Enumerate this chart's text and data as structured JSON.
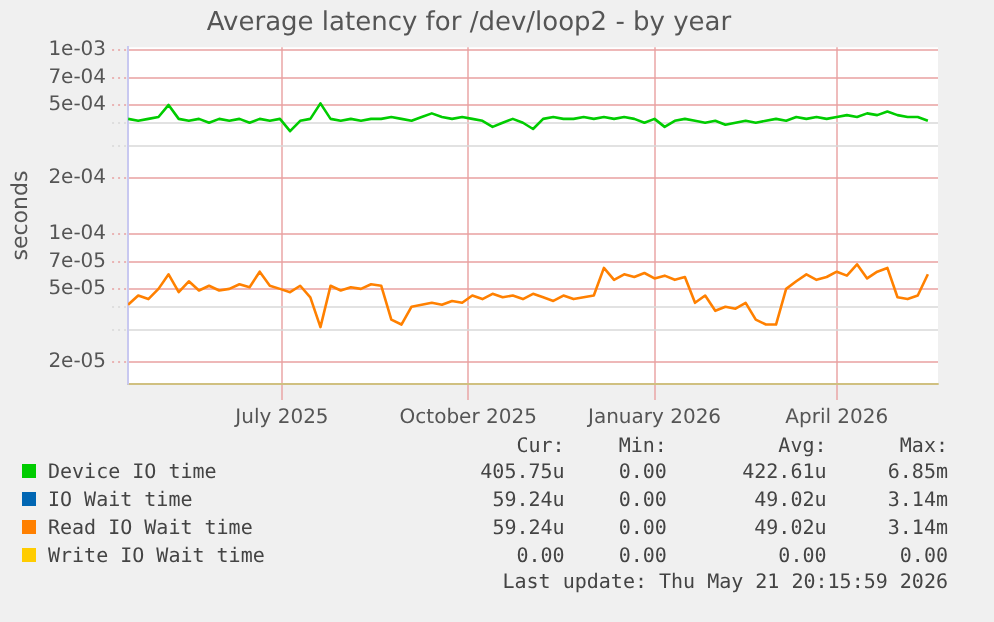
{
  "chart_data": {
    "type": "line",
    "title": "Average latency for /dev/loop2 - by year",
    "ylabel": "seconds",
    "log": "y",
    "grid": true,
    "legend": "bottom",
    "marker": "none",
    "line_style": "solid",
    "xlim": [
      "2025-04-16",
      "2026-05-21"
    ],
    "xticks": [
      {
        "value": "2025-07-01",
        "label": "July 2025"
      },
      {
        "value": "2025-10-01",
        "label": "October 2025"
      },
      {
        "value": "2026-01-01",
        "label": "January 2026"
      },
      {
        "value": "2026-04-01",
        "label": "April 2026"
      }
    ],
    "ylim": [
      1.52e-05,
      0.00103
    ],
    "yticks": [
      {
        "value": 2e-05,
        "label": "2e-05"
      },
      {
        "value": 3e-05,
        "label": null
      },
      {
        "value": 4e-05,
        "label": null
      },
      {
        "value": 5e-05,
        "label": "5e-05"
      },
      {
        "value": 7e-05,
        "label": "7e-05"
      },
      {
        "value": 0.0001,
        "label": "1e-04"
      },
      {
        "value": 0.0002,
        "label": "2e-04"
      },
      {
        "value": 0.0003,
        "label": null
      },
      {
        "value": 0.0004,
        "label": null
      },
      {
        "value": 0.0005,
        "label": "5e-04"
      },
      {
        "value": 0.0007,
        "label": "7e-04"
      },
      {
        "value": 0.001,
        "label": "1e-03"
      }
    ],
    "x": [
      "2025-04-16",
      "2025-04-21",
      "2025-04-26",
      "2025-05-01",
      "2025-05-06",
      "2025-05-11",
      "2025-05-16",
      "2025-05-21",
      "2025-05-26",
      "2025-05-31",
      "2025-06-05",
      "2025-06-10",
      "2025-06-15",
      "2025-06-20",
      "2025-06-25",
      "2025-06-30",
      "2025-07-05",
      "2025-07-10",
      "2025-07-15",
      "2025-07-20",
      "2025-07-25",
      "2025-07-30",
      "2025-08-04",
      "2025-08-09",
      "2025-08-14",
      "2025-08-19",
      "2025-08-24",
      "2025-08-29",
      "2025-09-03",
      "2025-09-08",
      "2025-09-13",
      "2025-09-18",
      "2025-09-23",
      "2025-09-28",
      "2025-10-03",
      "2025-10-08",
      "2025-10-13",
      "2025-10-18",
      "2025-10-23",
      "2025-10-28",
      "2025-11-02",
      "2025-11-07",
      "2025-11-12",
      "2025-11-17",
      "2025-11-22",
      "2025-11-27",
      "2025-12-02",
      "2025-12-07",
      "2025-12-12",
      "2025-12-17",
      "2025-12-22",
      "2025-12-27",
      "2026-01-01",
      "2026-01-06",
      "2026-01-11",
      "2026-01-16",
      "2026-01-21",
      "2026-01-26",
      "2026-01-31",
      "2026-02-05",
      "2026-02-10",
      "2026-02-15",
      "2026-02-20",
      "2026-02-25",
      "2026-03-02",
      "2026-03-07",
      "2026-03-12",
      "2026-03-17",
      "2026-03-22",
      "2026-03-27",
      "2026-04-01",
      "2026-04-06",
      "2026-04-11",
      "2026-04-16",
      "2026-04-21",
      "2026-04-26",
      "2026-05-01",
      "2026-05-06",
      "2026-05-11",
      "2026-05-16"
    ],
    "series": [
      {
        "name": "Device IO time",
        "color": "#00cc00",
        "values": [
          0.00042,
          0.00041,
          0.00042,
          0.00043,
          0.0005,
          0.00042,
          0.00041,
          0.00042,
          0.0004,
          0.00042,
          0.00041,
          0.00042,
          0.0004,
          0.00042,
          0.00041,
          0.00042,
          0.00036,
          0.00041,
          0.00042,
          0.00051,
          0.00042,
          0.00041,
          0.00042,
          0.00041,
          0.00042,
          0.00042,
          0.00043,
          0.00042,
          0.00041,
          0.00043,
          0.00045,
          0.00043,
          0.00042,
          0.00043,
          0.00042,
          0.00041,
          0.00038,
          0.0004,
          0.00042,
          0.0004,
          0.00037,
          0.00042,
          0.00043,
          0.00042,
          0.00042,
          0.00043,
          0.00042,
          0.00043,
          0.00042,
          0.00043,
          0.00042,
          0.0004,
          0.00042,
          0.00038,
          0.00041,
          0.00042,
          0.00041,
          0.0004,
          0.00041,
          0.00039,
          0.0004,
          0.00041,
          0.0004,
          0.00041,
          0.00042,
          0.00041,
          0.00043,
          0.00042,
          0.00043,
          0.00042,
          0.00043,
          0.00044,
          0.00043,
          0.00045,
          0.00044,
          0.00046,
          0.00044,
          0.00043,
          0.00043,
          0.00041
        ]
      },
      {
        "name": "IO Wait time",
        "color": "#0066b3",
        "values": [
          null,
          null,
          null,
          null,
          null,
          null,
          null,
          null,
          null,
          null,
          null,
          null,
          null,
          null,
          null,
          null,
          null,
          null,
          null,
          null,
          null,
          null,
          null,
          null,
          null,
          null,
          null,
          null,
          null,
          null,
          null,
          null,
          null,
          null,
          null,
          null,
          null,
          null,
          null,
          null,
          null,
          null,
          null,
          null,
          null,
          null,
          null,
          null,
          null,
          null,
          null,
          null,
          null,
          null,
          null,
          null,
          null,
          null,
          null,
          null,
          null,
          null,
          null,
          null,
          null,
          null,
          null,
          null,
          null,
          null,
          null,
          null,
          null,
          null,
          null,
          null,
          null,
          null,
          null,
          null
        ]
      },
      {
        "name": "Read IO Wait time",
        "color": "#ff8000",
        "values": [
          4.1e-05,
          4.6e-05,
          4.4e-05,
          5e-05,
          6e-05,
          4.8e-05,
          5.5e-05,
          4.9e-05,
          5.2e-05,
          4.9e-05,
          5e-05,
          5.3e-05,
          5.1e-05,
          6.2e-05,
          5.2e-05,
          5e-05,
          4.8e-05,
          5.2e-05,
          4.5e-05,
          3.1e-05,
          5.2e-05,
          4.9e-05,
          5.1e-05,
          5e-05,
          5.3e-05,
          5.2e-05,
          3.4e-05,
          3.2e-05,
          4e-05,
          4.1e-05,
          4.2e-05,
          4.1e-05,
          4.3e-05,
          4.2e-05,
          4.6e-05,
          4.4e-05,
          4.7e-05,
          4.5e-05,
          4.6e-05,
          4.4e-05,
          4.7e-05,
          4.5e-05,
          4.3e-05,
          4.6e-05,
          4.4e-05,
          4.5e-05,
          4.6e-05,
          6.5e-05,
          5.6e-05,
          6e-05,
          5.8e-05,
          6.1e-05,
          5.7e-05,
          5.9e-05,
          5.6e-05,
          5.8e-05,
          4.2e-05,
          4.6e-05,
          3.8e-05,
          4e-05,
          3.9e-05,
          4.2e-05,
          3.4e-05,
          3.2e-05,
          3.2e-05,
          5e-05,
          5.5e-05,
          6e-05,
          5.6e-05,
          5.8e-05,
          6.2e-05,
          5.9e-05,
          6.8e-05,
          5.7e-05,
          6.2e-05,
          6.5e-05,
          4.5e-05,
          4.4e-05,
          4.6e-05,
          6e-05
        ]
      },
      {
        "name": "Write IO Wait time",
        "color": "#ffcc00",
        "values": [
          null,
          null,
          null,
          null,
          null,
          null,
          null,
          null,
          null,
          null,
          null,
          null,
          null,
          null,
          null,
          null,
          null,
          null,
          null,
          null,
          null,
          null,
          null,
          null,
          null,
          null,
          null,
          null,
          null,
          null,
          null,
          null,
          null,
          null,
          null,
          null,
          null,
          null,
          null,
          null,
          null,
          null,
          null,
          null,
          null,
          null,
          null,
          null,
          null,
          null,
          null,
          null,
          null,
          null,
          null,
          null,
          null,
          null,
          null,
          null,
          null,
          null,
          null,
          null,
          null,
          null,
          null,
          null,
          null,
          null,
          null,
          null,
          null,
          null,
          null,
          null,
          null,
          null,
          null,
          null
        ]
      }
    ],
    "annotations": [
      "Cur:",
      "Min:",
      "Avg:",
      "Max:",
      "405.75u",
      "0.00",
      "422.61u",
      "6.85m",
      "59.24u",
      "0.00",
      "49.02u",
      "3.14m",
      "59.24u",
      "0.00",
      "49.02u",
      "3.14m",
      "0.00",
      "0.00",
      "0.00",
      "0.00",
      "Last update: Thu May 21 20:15:59 2026"
    ]
  }
}
